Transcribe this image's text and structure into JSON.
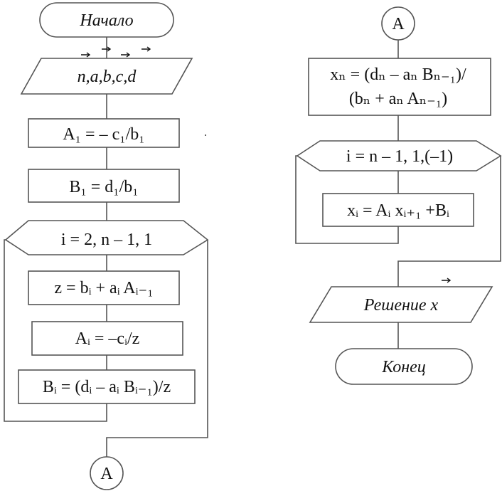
{
  "flowchart": {
    "left": {
      "start": "Начало",
      "input": "n,a,b,c,d",
      "a1": "A₁ = – c₁/b₁",
      "b1": "B₁ = d₁/b₁",
      "loop": "i = 2, n – 1, 1",
      "z": "z = bᵢ + aᵢ Aᵢ₋₁",
      "ai": "Aᵢ = –cᵢ/z",
      "bi": "Bᵢ = (dᵢ – aᵢ Bᵢ₋₁)/z",
      "connector": "A"
    },
    "right": {
      "connector": "A",
      "xn_line1": "xₙ = (dₙ – aₙ Bₙ₋₁)/",
      "xn_line2": "(bₙ + aₙ Aₙ₋₁)",
      "loop": "i = n – 1, 1,(–1)",
      "xi": "xᵢ = Aᵢ xᵢ₊₁ +Bᵢ",
      "output": "Решение x",
      "end": "Конец"
    }
  }
}
